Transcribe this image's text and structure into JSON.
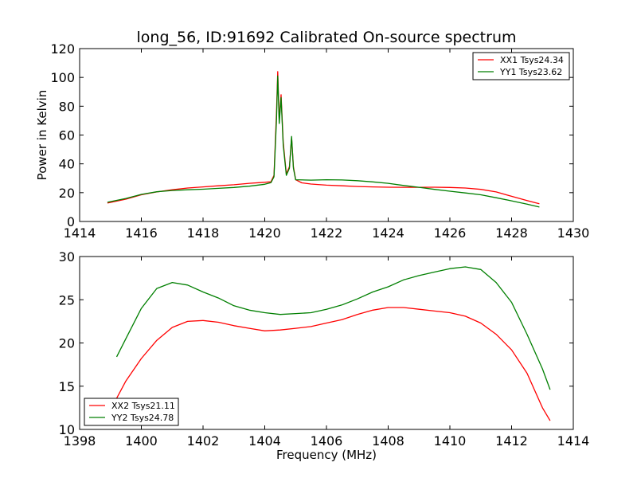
{
  "figure_title": "long_56, ID:91692 Calibrated On-source spectrum",
  "chart_data": [
    {
      "type": "line",
      "title": "long_56, ID:91692 Calibrated On-source spectrum",
      "xlabel": "",
      "ylabel": "Power in Kelvin",
      "xlim": [
        1414,
        1430
      ],
      "ylim": [
        0,
        120
      ],
      "xticks": [
        "1414",
        "1416",
        "1418",
        "1420",
        "1422",
        "1424",
        "1426",
        "1428",
        "1430"
      ],
      "yticks": [
        "0",
        "20",
        "40",
        "60",
        "80",
        "100",
        "120"
      ],
      "legend_position": "top-right",
      "series": [
        {
          "name": "XX1 Tsys24.34",
          "color": "#ff0000",
          "points": [
            [
              1414.9,
              12.8
            ],
            [
              1415.5,
              15.5
            ],
            [
              1416,
              18.5
            ],
            [
              1416.5,
              20.5
            ],
            [
              1417,
              22
            ],
            [
              1417.5,
              23.2
            ],
            [
              1418,
              24
            ],
            [
              1418.5,
              24.8
            ],
            [
              1419,
              25.5
            ],
            [
              1419.5,
              26.5
            ],
            [
              1420,
              27.2
            ],
            [
              1420.2,
              27.6
            ],
            [
              1420.3,
              32
            ],
            [
              1420.38,
              75
            ],
            [
              1420.42,
              104
            ],
            [
              1420.47,
              70
            ],
            [
              1420.53,
              88
            ],
            [
              1420.6,
              55
            ],
            [
              1420.7,
              33
            ],
            [
              1420.8,
              38
            ],
            [
              1420.87,
              58
            ],
            [
              1420.93,
              38
            ],
            [
              1421,
              29
            ],
            [
              1421.2,
              26.8
            ],
            [
              1421.5,
              26
            ],
            [
              1422,
              25.2
            ],
            [
              1422.5,
              24.8
            ],
            [
              1423,
              24.3
            ],
            [
              1423.5,
              24
            ],
            [
              1424,
              23.8
            ],
            [
              1424.5,
              23.7
            ],
            [
              1425,
              23.7
            ],
            [
              1425.5,
              23.8
            ],
            [
              1426,
              23.6
            ],
            [
              1426.5,
              23.2
            ],
            [
              1427,
              22.3
            ],
            [
              1427.5,
              20.5
            ],
            [
              1428,
              17.5
            ],
            [
              1428.5,
              14.5
            ],
            [
              1428.9,
              12.3
            ]
          ]
        },
        {
          "name": "YY1 Tsys23.62",
          "color": "#007f00",
          "points": [
            [
              1414.9,
              13.3
            ],
            [
              1415.5,
              16
            ],
            [
              1416,
              18.8
            ],
            [
              1416.5,
              20.6
            ],
            [
              1417,
              21.5
            ],
            [
              1417.5,
              22
            ],
            [
              1418,
              22.4
            ],
            [
              1418.5,
              23
            ],
            [
              1419,
              23.6
            ],
            [
              1419.5,
              24.5
            ],
            [
              1420,
              25.8
            ],
            [
              1420.2,
              27
            ],
            [
              1420.3,
              31
            ],
            [
              1420.38,
              70
            ],
            [
              1420.42,
              101
            ],
            [
              1420.47,
              68
            ],
            [
              1420.53,
              86
            ],
            [
              1420.6,
              53
            ],
            [
              1420.7,
              32
            ],
            [
              1420.8,
              37
            ],
            [
              1420.87,
              59
            ],
            [
              1420.93,
              37
            ],
            [
              1421,
              29
            ],
            [
              1421.5,
              28.7
            ],
            [
              1422,
              29
            ],
            [
              1422.5,
              28.8
            ],
            [
              1423,
              28.3
            ],
            [
              1423.5,
              27.5
            ],
            [
              1424,
              26.5
            ],
            [
              1424.5,
              25
            ],
            [
              1425,
              23.7
            ],
            [
              1425.5,
              22.3
            ],
            [
              1426,
              21
            ],
            [
              1426.5,
              19.8
            ],
            [
              1427,
              18.5
            ],
            [
              1427.5,
              16.5
            ],
            [
              1428,
              14.3
            ],
            [
              1428.5,
              12
            ],
            [
              1428.9,
              10
            ]
          ]
        }
      ]
    },
    {
      "type": "line",
      "title": "",
      "xlabel": "Frequency (MHz)",
      "ylabel": "",
      "xlim": [
        1398,
        1414
      ],
      "ylim": [
        10,
        30
      ],
      "xticks": [
        "1398",
        "1400",
        "1402",
        "1404",
        "1406",
        "1408",
        "1410",
        "1412",
        "1414"
      ],
      "yticks": [
        "10",
        "15",
        "20",
        "25",
        "30"
      ],
      "legend_position": "bottom-left",
      "series": [
        {
          "name": "XX2 Tsys21.11",
          "color": "#ff0000",
          "points": [
            [
              1399.2,
              13.6
            ],
            [
              1399.5,
              15.6
            ],
            [
              1400,
              18.2
            ],
            [
              1400.5,
              20.3
            ],
            [
              1401,
              21.8
            ],
            [
              1401.5,
              22.5
            ],
            [
              1402,
              22.6
            ],
            [
              1402.5,
              22.4
            ],
            [
              1403,
              22
            ],
            [
              1403.5,
              21.7
            ],
            [
              1404,
              21.4
            ],
            [
              1404.5,
              21.5
            ],
            [
              1405,
              21.7
            ],
            [
              1405.5,
              21.9
            ],
            [
              1406,
              22.3
            ],
            [
              1406.5,
              22.7
            ],
            [
              1407,
              23.3
            ],
            [
              1407.5,
              23.8
            ],
            [
              1408,
              24.1
            ],
            [
              1408.5,
              24.1
            ],
            [
              1409,
              23.9
            ],
            [
              1409.5,
              23.7
            ],
            [
              1410,
              23.5
            ],
            [
              1410.5,
              23.1
            ],
            [
              1411,
              22.3
            ],
            [
              1411.5,
              21
            ],
            [
              1412,
              19.2
            ],
            [
              1412.5,
              16.5
            ],
            [
              1413,
              12.5
            ],
            [
              1413.25,
              11
            ]
          ]
        },
        {
          "name": "YY2 Tsys24.78",
          "color": "#007f00",
          "points": [
            [
              1399.2,
              18.4
            ],
            [
              1399.5,
              20.5
            ],
            [
              1400,
              24
            ],
            [
              1400.5,
              26.3
            ],
            [
              1401,
              27
            ],
            [
              1401.5,
              26.7
            ],
            [
              1402,
              25.9
            ],
            [
              1402.5,
              25.2
            ],
            [
              1403,
              24.3
            ],
            [
              1403.5,
              23.8
            ],
            [
              1404,
              23.5
            ],
            [
              1404.5,
              23.3
            ],
            [
              1405,
              23.4
            ],
            [
              1405.5,
              23.5
            ],
            [
              1406,
              23.9
            ],
            [
              1406.5,
              24.4
            ],
            [
              1407,
              25.1
            ],
            [
              1407.5,
              25.9
            ],
            [
              1408,
              26.5
            ],
            [
              1408.5,
              27.3
            ],
            [
              1409,
              27.8
            ],
            [
              1409.5,
              28.2
            ],
            [
              1410,
              28.6
            ],
            [
              1410.5,
              28.8
            ],
            [
              1411,
              28.5
            ],
            [
              1411.5,
              27
            ],
            [
              1412,
              24.7
            ],
            [
              1412.5,
              21
            ],
            [
              1413,
              17
            ],
            [
              1413.25,
              14.6
            ]
          ]
        }
      ]
    }
  ]
}
